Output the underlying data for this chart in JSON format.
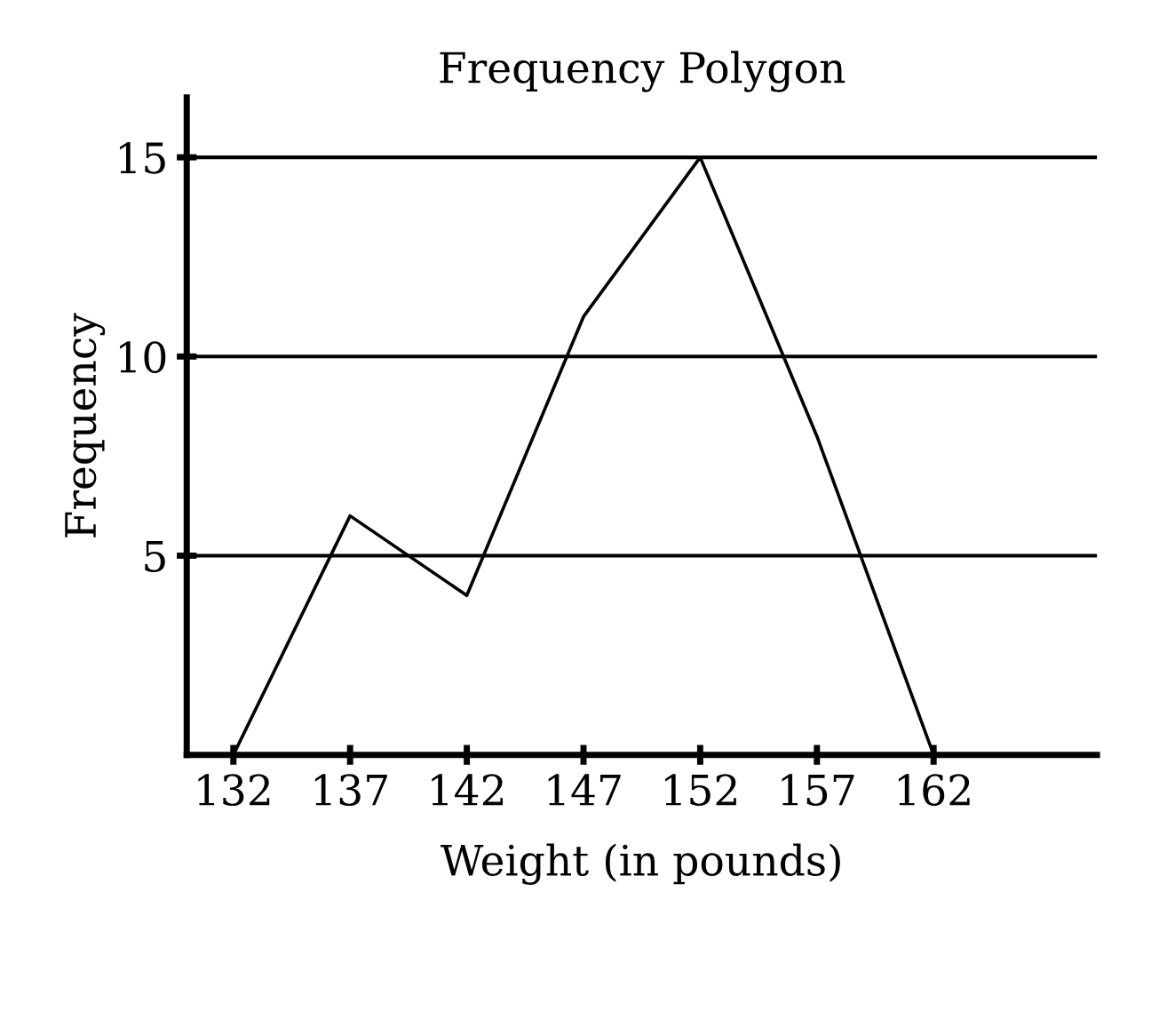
{
  "chart_data": {
    "type": "line",
    "title": "Frequency Polygon",
    "xlabel": "Weight (in pounds)",
    "ylabel": "Frequency",
    "x": [
      132,
      137,
      142,
      147,
      152,
      157,
      162
    ],
    "series": [
      {
        "color": "#000000",
        "values": [
          0,
          6,
          4,
          11,
          15,
          8,
          0
        ]
      }
    ],
    "xlim": [
      130,
      169
    ],
    "ylim": [
      0,
      16.5
    ],
    "xticks": [
      132,
      137,
      142,
      147,
      152,
      157,
      162
    ],
    "yticks": [
      5,
      10,
      15
    ],
    "grid": "y",
    "marker": "none",
    "line_style": "solid",
    "legend": false
  }
}
